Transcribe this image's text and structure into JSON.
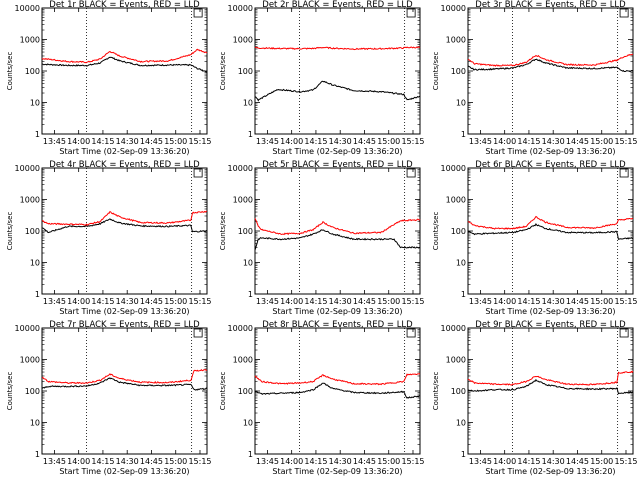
{
  "figure": {
    "x_tick_labels": [
      "13:45",
      "14:00",
      "14:15",
      "14:30",
      "14:45",
      "15:00",
      "15:15"
    ],
    "x_tick_minutes": [
      -8.3333,
      6.6667,
      21.6667,
      36.6667,
      51.6667,
      66.6667,
      81.6667
    ],
    "y_tick_labels": [
      "1",
      "10",
      "100",
      "1000",
      "10000"
    ],
    "y_tick_values": [
      1,
      10,
      100,
      1000,
      10000
    ],
    "xlabel": "Start Time (02-Sep-09 13:36:20)",
    "ylabel": "Counts/sec",
    "colors": {
      "events": "#000000",
      "lld": "#ff0000",
      "frame": "#000000",
      "dotted": "#000000"
    },
    "xlim": [
      -16,
      86
    ],
    "ylim": [
      1,
      10000
    ],
    "yscale": "log",
    "dotted_vertical_lines": [
      11.5,
      76.5
    ],
    "legend_box_x": [
      78,
      83
    ]
  },
  "chart_data": [
    {
      "type": "line",
      "title": "Det 1r  BLACK = Events, RED = LLD",
      "x": [
        -16,
        0,
        12,
        20,
        26,
        32,
        45,
        62,
        76,
        80,
        86
      ],
      "series": [
        {
          "color": "#000000",
          "values": [
            165,
            150,
            150,
            180,
            280,
            210,
            150,
            155,
            155,
            120,
            95
          ]
        },
        {
          "color": "#ff0000",
          "values": [
            250,
            200,
            190,
            240,
            420,
            300,
            200,
            210,
            330,
            480,
            380
          ]
        }
      ]
    },
    {
      "type": "line",
      "title": "Det 2r  BLACK = Events, RED = LLD",
      "x": [
        -16,
        -14,
        -2,
        12,
        20,
        26,
        32,
        45,
        62,
        76,
        78,
        86
      ],
      "series": [
        {
          "color": "#000000",
          "values": [
            16,
            12,
            26,
            22,
            25,
            48,
            36,
            24,
            22,
            18,
            12,
            16
          ]
        },
        {
          "color": "#ff0000",
          "values": [
            560,
            540,
            520,
            510,
            520,
            560,
            530,
            500,
            510,
            540,
            560,
            560
          ]
        }
      ]
    },
    {
      "type": "line",
      "title": "Det 3r  BLACK = Events, RED = LLD",
      "x": [
        -16,
        -12,
        0,
        12,
        20,
        26,
        32,
        45,
        62,
        76,
        80,
        86
      ],
      "series": [
        {
          "color": "#000000",
          "values": [
            140,
            110,
            115,
            125,
            160,
            240,
            180,
            125,
            120,
            130,
            100,
            100
          ]
        },
        {
          "color": "#ff0000",
          "values": [
            240,
            170,
            150,
            150,
            190,
            320,
            230,
            160,
            155,
            220,
            280,
            350
          ]
        }
      ]
    },
    {
      "type": "line",
      "title": "Det 4r  BLACK = Events, RED = LLD",
      "x": [
        -16,
        -12,
        0,
        12,
        20,
        26,
        32,
        45,
        62,
        76,
        77,
        86
      ],
      "series": [
        {
          "color": "#000000",
          "values": [
            130,
            90,
            140,
            140,
            170,
            240,
            180,
            145,
            140,
            150,
            95,
            100
          ]
        },
        {
          "color": "#ff0000",
          "values": [
            210,
            170,
            165,
            160,
            200,
            400,
            280,
            185,
            180,
            220,
            380,
            420
          ]
        }
      ]
    },
    {
      "type": "line",
      "title": "Det 5r  BLACK = Events, RED = LLD",
      "x": [
        -16,
        -14,
        -12,
        0,
        12,
        20,
        26,
        32,
        45,
        62,
        70,
        74,
        86
      ],
      "series": [
        {
          "color": "#000000",
          "values": [
            25,
            55,
            60,
            55,
            60,
            80,
            110,
            80,
            55,
            55,
            55,
            30,
            30
          ]
        },
        {
          "color": "#ff0000",
          "values": [
            250,
            140,
            110,
            80,
            85,
            110,
            190,
            130,
            85,
            90,
            160,
            210,
            230
          ]
        }
      ]
    },
    {
      "type": "line",
      "title": "Det 6r  BLACK = Events, RED = LLD",
      "x": [
        -16,
        -12,
        0,
        12,
        20,
        26,
        32,
        45,
        62,
        76,
        77,
        86
      ],
      "series": [
        {
          "color": "#000000",
          "values": [
            100,
            80,
            85,
            90,
            110,
            160,
            120,
            90,
            88,
            95,
            55,
            60
          ]
        },
        {
          "color": "#ff0000",
          "values": [
            200,
            150,
            120,
            120,
            140,
            280,
            190,
            130,
            125,
            170,
            220,
            250
          ]
        }
      ]
    },
    {
      "type": "line",
      "title": "Det 7r  BLACK = Events, RED = LLD",
      "x": [
        -16,
        -12,
        0,
        12,
        20,
        26,
        32,
        45,
        62,
        76,
        78,
        86
      ],
      "series": [
        {
          "color": "#000000",
          "values": [
            120,
            140,
            140,
            145,
            180,
            260,
            190,
            150,
            150,
            160,
            110,
            120
          ]
        },
        {
          "color": "#ff0000",
          "values": [
            280,
            200,
            180,
            180,
            220,
            340,
            250,
            190,
            185,
            220,
            430,
            480
          ]
        }
      ]
    },
    {
      "type": "line",
      "title": "Det 8r  BLACK = Events, RED = LLD",
      "x": [
        -16,
        -12,
        0,
        12,
        20,
        26,
        32,
        45,
        62,
        76,
        78,
        86
      ],
      "series": [
        {
          "color": "#000000",
          "values": [
            100,
            80,
            85,
            90,
            110,
            180,
            120,
            90,
            85,
            95,
            60,
            70
          ]
        },
        {
          "color": "#ff0000",
          "values": [
            300,
            200,
            170,
            180,
            200,
            320,
            240,
            170,
            165,
            200,
            330,
            350
          ]
        }
      ]
    },
    {
      "type": "line",
      "title": "Det 9r  BLACK = Events, RED = LLD",
      "x": [
        -16,
        -12,
        0,
        12,
        20,
        26,
        32,
        45,
        62,
        76,
        77,
        86
      ],
      "series": [
        {
          "color": "#000000",
          "values": [
            110,
            100,
            110,
            110,
            140,
            220,
            160,
            120,
            115,
            120,
            85,
            90
          ]
        },
        {
          "color": "#ff0000",
          "values": [
            240,
            180,
            165,
            160,
            200,
            300,
            230,
            165,
            160,
            190,
            380,
            410
          ]
        }
      ]
    }
  ]
}
